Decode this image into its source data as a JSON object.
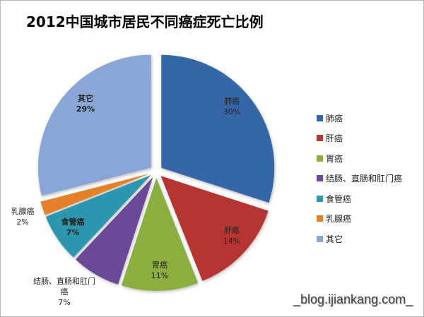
{
  "title": "2012中国城市居民不同癌症死亡比例",
  "watermark": "_blog.ijiankang.com_",
  "chart_data": {
    "type": "pie",
    "title": "2012中国城市居民不同癌症死亡比例",
    "categories": [
      "肺癌",
      "肝癌",
      "胃癌",
      "结肠、直肠和肛门癌",
      "食管癌",
      "乳腺癌",
      "其它"
    ],
    "values": [
      30,
      14,
      11,
      7,
      7,
      2,
      29
    ],
    "labels": [
      "30%",
      "14%",
      "11%",
      "7%",
      "7%",
      "2%",
      "29%"
    ],
    "colors": [
      "#3466a8",
      "#b63433",
      "#8aae3f",
      "#6a4a98",
      "#2f97b0",
      "#e4802a",
      "#89a6d6"
    ],
    "legend_position": "right",
    "exploded": true
  },
  "legend": [
    {
      "label": "肺癌",
      "color": "#3466a8"
    },
    {
      "label": "肝癌",
      "color": "#b63433"
    },
    {
      "label": "胃癌",
      "color": "#8aae3f"
    },
    {
      "label": "结肠、直肠和肛门癌",
      "color": "#6a4a98"
    },
    {
      "label": "食管癌",
      "color": "#2f97b0"
    },
    {
      "label": "乳腺癌",
      "color": "#e4802a"
    },
    {
      "label": "其它",
      "color": "#89a6d6"
    }
  ],
  "slice_labels": [
    {
      "name": "肺癌",
      "pct": "30%"
    },
    {
      "name": "肝癌",
      "pct": "14%"
    },
    {
      "name": "胃癌",
      "pct": "11%"
    },
    {
      "name": "结肠、直肠和肛门",
      "name2": "癌",
      "pct": "7%"
    },
    {
      "name": "食管癌",
      "pct": "7%"
    },
    {
      "name": "乳腺癌",
      "pct": "2%"
    },
    {
      "name": "其它",
      "pct": "29%"
    }
  ]
}
